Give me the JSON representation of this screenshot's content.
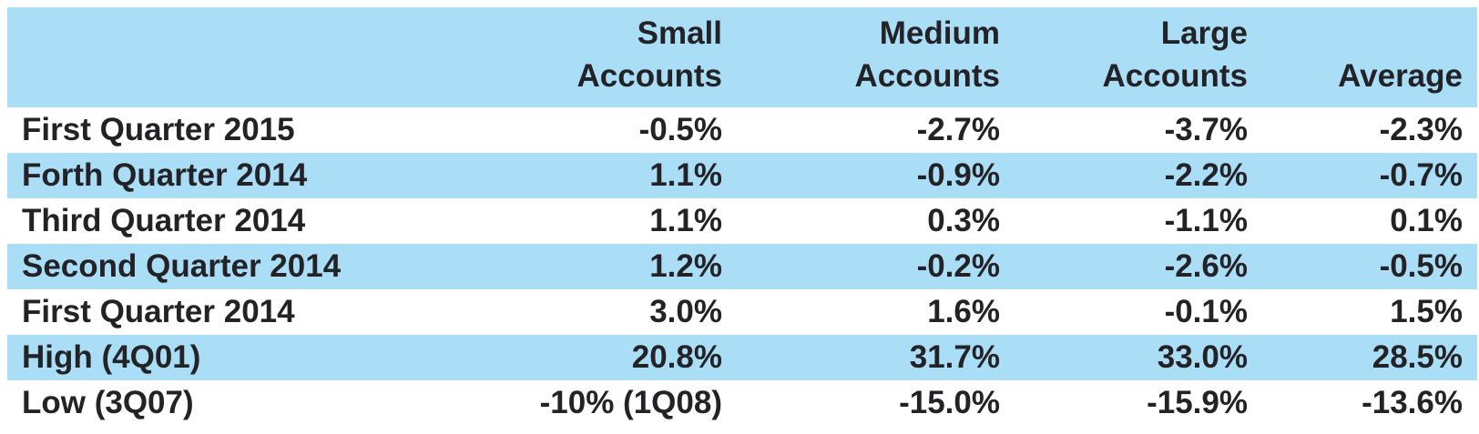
{
  "colors": {
    "stripe_blue": "#aadef7",
    "text_dark": "#232327",
    "background": "#ffffff"
  },
  "table": {
    "headers": [
      {
        "line1": "Small",
        "line2": "Accounts"
      },
      {
        "line1": "Medium",
        "line2": "Accounts"
      },
      {
        "line1": "Large",
        "line2": "Accounts"
      },
      {
        "line1": "",
        "line2": "Average"
      }
    ],
    "rows": [
      {
        "label": "First Quarter 2015",
        "values": [
          "-0.5%",
          "-2.7%",
          "-3.7%",
          "-2.3%"
        ]
      },
      {
        "label": "Forth Quarter 2014",
        "values": [
          "1.1%",
          "-0.9%",
          "-2.2%",
          "-0.7%"
        ]
      },
      {
        "label": "Third Quarter 2014",
        "values": [
          "1.1%",
          "0.3%",
          "-1.1%",
          "0.1%"
        ]
      },
      {
        "label": "Second Quarter 2014",
        "values": [
          "1.2%",
          "-0.2%",
          "-2.6%",
          "-0.5%"
        ]
      },
      {
        "label": "First Quarter 2014",
        "values": [
          "3.0%",
          "1.6%",
          "-0.1%",
          "1.5%"
        ]
      },
      {
        "label": "High (4Q01)",
        "values": [
          "20.8%",
          "31.7%",
          "33.0%",
          "28.5%"
        ]
      },
      {
        "label": "Low (3Q07)",
        "values": [
          "-10% (1Q08)",
          "-15.0%",
          "-15.9%",
          "-13.6%"
        ]
      }
    ]
  }
}
